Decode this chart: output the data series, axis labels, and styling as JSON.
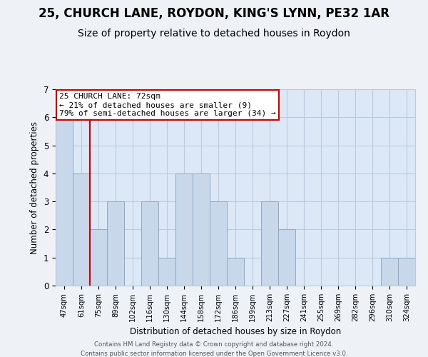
{
  "title": "25, CHURCH LANE, ROYDON, KING'S LYNN, PE32 1AR",
  "subtitle": "Size of property relative to detached houses in Roydon",
  "xlabel": "Distribution of detached houses by size in Roydon",
  "ylabel": "Number of detached properties",
  "footer_lines": [
    "Contains HM Land Registry data © Crown copyright and database right 2024.",
    "Contains public sector information licensed under the Open Government Licence v3.0."
  ],
  "categories": [
    "47sqm",
    "61sqm",
    "75sqm",
    "89sqm",
    "102sqm",
    "116sqm",
    "130sqm",
    "144sqm",
    "158sqm",
    "172sqm",
    "186sqm",
    "199sqm",
    "213sqm",
    "227sqm",
    "241sqm",
    "255sqm",
    "269sqm",
    "282sqm",
    "296sqm",
    "310sqm",
    "324sqm"
  ],
  "values": [
    6,
    4,
    2,
    3,
    0,
    3,
    1,
    4,
    4,
    3,
    1,
    0,
    3,
    2,
    0,
    0,
    0,
    0,
    0,
    1,
    1
  ],
  "bar_color": "#c8d8ea",
  "bar_edge_color": "#8aaac8",
  "red_line_color": "#cc0000",
  "annotation_title": "25 CHURCH LANE: 72sqm",
  "annotation_line1": "← 21% of detached houses are smaller (9)",
  "annotation_line2": "79% of semi-detached houses are larger (34) →",
  "annotation_box_color": "#ffffff",
  "annotation_box_edge_color": "#cc0000",
  "ylim": [
    0,
    7
  ],
  "yticks": [
    0,
    1,
    2,
    3,
    4,
    5,
    6,
    7
  ],
  "background_color": "#eef2f7",
  "plot_background": "#dce8f5",
  "grid_color": "#b8cce0",
  "title_fontsize": 12,
  "subtitle_fontsize": 10
}
